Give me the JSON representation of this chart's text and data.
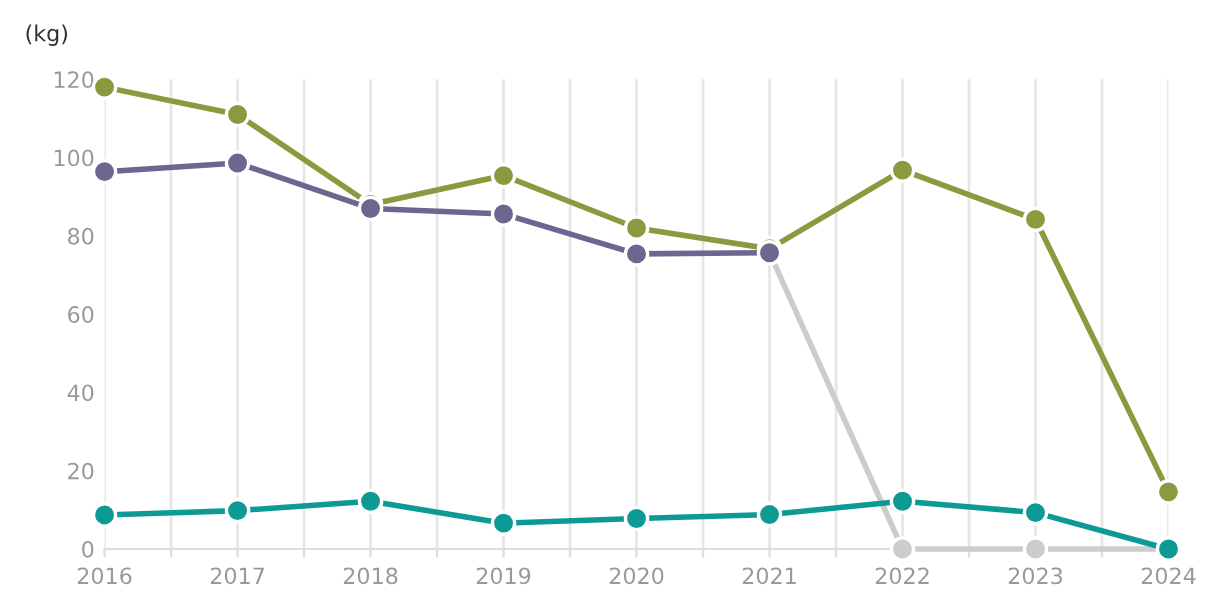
{
  "chart_data": {
    "type": "line",
    "ylabel": "(kg)",
    "x": [
      2016,
      2017,
      2018,
      2019,
      2020,
      2021,
      2022,
      2023,
      2024
    ],
    "series": [
      {
        "color": "#cccccc",
        "values": [
          null,
          null,
          null,
          null,
          null,
          75.7,
          0,
          0,
          0
        ]
      },
      {
        "color": "#8a9a3f",
        "values": [
          118,
          111,
          88,
          95.4,
          82,
          76.7,
          96.8,
          84.2,
          14.6
        ]
      },
      {
        "color": "#6e6690",
        "values": [
          96.4,
          98.6,
          87,
          85.6,
          75.4,
          75.7,
          null,
          null,
          null
        ]
      },
      {
        "color": "#0e9a94",
        "values": [
          8.7,
          9.8,
          12.2,
          6.6,
          7.8,
          8.8,
          12.2,
          9.3,
          0
        ]
      }
    ],
    "xlim": [
      2016,
      2024
    ],
    "xticks": [
      2016,
      {
        "value": 2016.5,
        "label": null
      },
      2017,
      {
        "value": 2017.5,
        "label": null
      },
      2018,
      {
        "value": 2018.5,
        "label": null
      },
      2019,
      {
        "value": 2019.5,
        "label": null
      },
      2020,
      {
        "value": 2020.5,
        "label": null
      },
      2021,
      {
        "value": 2021.5,
        "label": null
      },
      2022,
      {
        "value": 2022.5,
        "label": null
      },
      2023,
      {
        "value": 2023.5,
        "label": null
      },
      2024
    ],
    "ylim": [
      0,
      120
    ],
    "yticks": [
      0,
      20,
      40,
      60,
      80,
      100,
      120
    ],
    "grid": "x",
    "marker": "circle",
    "line_style": "solid",
    "legend": false
  }
}
